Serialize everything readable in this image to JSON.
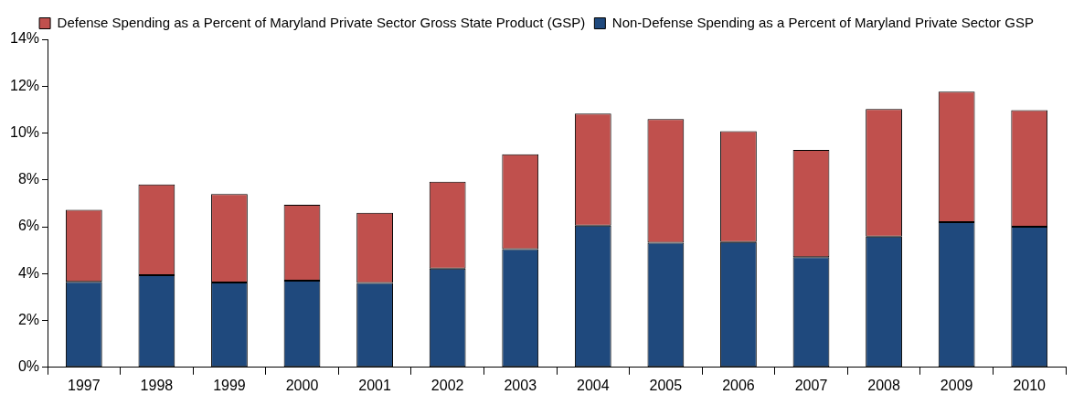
{
  "chart_data": {
    "type": "bar",
    "stacked": true,
    "categories": [
      "1997",
      "1998",
      "1999",
      "2000",
      "2001",
      "2002",
      "2003",
      "2004",
      "2005",
      "2006",
      "2007",
      "2008",
      "2009",
      "2010"
    ],
    "series": [
      {
        "name": "Non-Defense Spending as a Percent of Maryland Private Sector GSP",
        "color": "#1f497d",
        "values": [
          3.65,
          3.93,
          3.62,
          3.7,
          3.6,
          4.22,
          5.05,
          6.05,
          5.32,
          5.35,
          4.7,
          5.58,
          6.2,
          6.0
        ]
      },
      {
        "name": "Defense Spending as a Percent of Maryland Private Sector Gross State Product (GSP)",
        "color": "#c0504d",
        "values": [
          3.07,
          3.88,
          3.78,
          3.24,
          3.0,
          3.7,
          4.04,
          4.78,
          5.28,
          4.73,
          4.58,
          5.44,
          5.57,
          4.98
        ]
      }
    ],
    "ylim": [
      0,
      14
    ],
    "yticks": [
      {
        "value": 0,
        "label": "0%"
      },
      {
        "value": 2,
        "label": "2%"
      },
      {
        "value": 4,
        "label": "4%"
      },
      {
        "value": 6,
        "label": "6%"
      },
      {
        "value": 8,
        "label": "8%"
      },
      {
        "value": 10,
        "label": "10%"
      },
      {
        "value": 12,
        "label": "12%"
      },
      {
        "value": 14,
        "label": "14%"
      }
    ],
    "grid": false,
    "legend": "top"
  }
}
